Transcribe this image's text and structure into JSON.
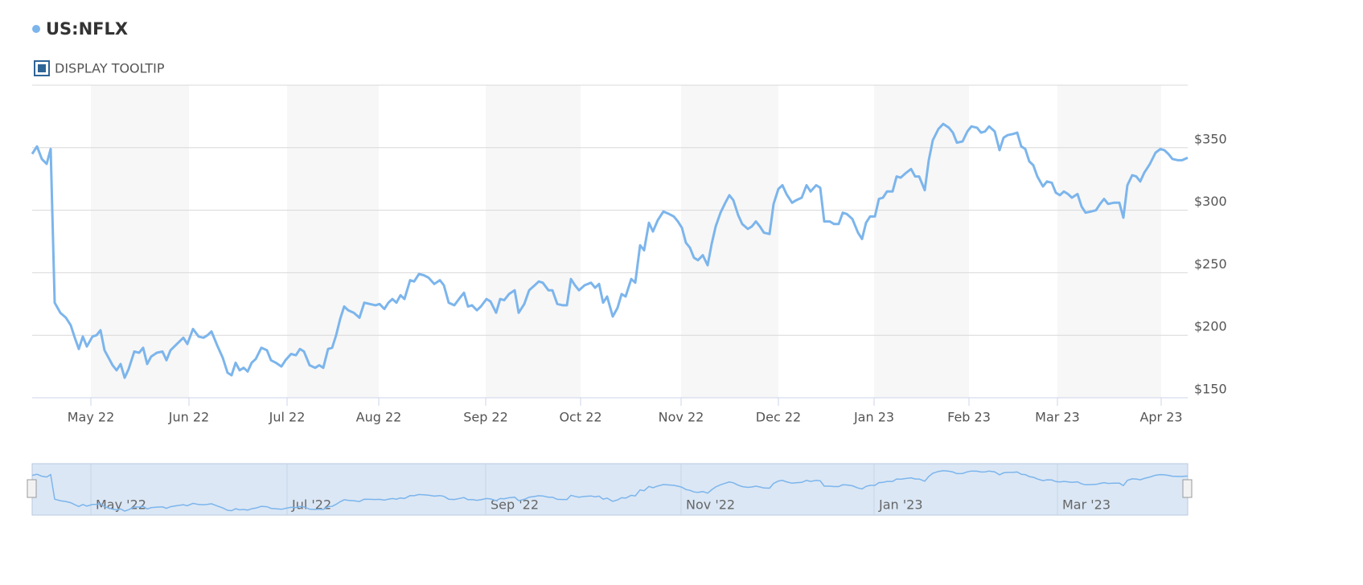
{
  "chart_data": {
    "type": "line",
    "series": [
      {
        "name": "US:NFLX",
        "color": "#7cb5ec",
        "values": [
          345,
          351,
          341,
          337,
          349,
          226,
          218,
          214,
          208,
          198,
          189,
          199,
          191,
          199,
          200,
          204,
          188,
          182,
          176,
          172,
          177,
          166,
          173,
          187,
          186,
          190,
          177,
          183,
          186,
          187,
          180,
          188,
          193,
          198,
          193,
          205,
          199,
          198,
          200,
          203,
          192,
          182,
          170,
          168,
          178,
          172,
          174,
          171,
          178,
          181,
          190,
          188,
          180,
          178,
          175,
          180,
          185,
          184,
          189,
          187,
          176,
          174,
          176,
          174,
          189,
          190,
          200,
          213,
          223,
          220,
          218,
          214,
          226,
          225,
          224,
          225,
          221,
          226,
          229,
          226,
          232,
          229,
          244,
          243,
          249,
          248,
          246,
          241,
          244,
          240,
          226,
          224,
          230,
          234,
          223,
          224,
          220,
          223,
          229,
          227,
          218,
          229,
          228,
          233,
          236,
          218,
          225,
          236,
          240,
          243,
          242,
          236,
          236,
          225,
          224,
          224,
          245,
          240,
          236,
          240,
          242,
          238,
          241,
          226,
          231,
          215,
          222,
          233,
          231,
          245,
          242,
          272,
          268,
          290,
          283,
          292,
          299,
          297,
          295,
          291,
          286,
          274,
          270,
          262,
          260,
          264,
          256,
          273,
          287,
          298,
          306,
          312,
          308,
          296,
          289,
          285,
          287,
          291,
          287,
          282,
          281,
          305,
          317,
          320,
          313,
          306,
          308,
          310,
          320,
          315,
          320,
          318,
          291,
          291,
          289,
          289,
          298,
          297,
          293,
          282,
          277,
          290,
          295,
          295,
          309,
          310,
          315,
          315,
          327,
          326,
          330,
          333,
          327,
          327,
          316,
          340,
          356,
          365,
          369,
          366,
          362,
          354,
          355,
          363,
          367,
          366,
          362,
          363,
          367,
          363,
          348,
          358,
          360,
          361,
          362,
          351,
          349,
          339,
          336,
          327,
          319,
          323,
          322,
          314,
          312,
          315,
          313,
          310,
          313,
          303,
          298,
          299,
          300,
          305,
          309,
          305,
          306,
          306,
          294,
          320,
          328,
          327,
          323,
          330,
          337,
          346,
          349,
          348,
          345,
          341,
          340,
          340,
          342
        ]
      }
    ],
    "x": [
      0,
      6,
      12,
      18,
      23,
      28,
      35,
      42,
      48,
      53,
      58,
      63,
      68,
      75,
      80,
      85,
      90,
      95,
      100,
      105,
      110,
      115,
      120,
      127,
      133,
      138,
      143,
      148,
      155,
      162,
      167,
      172,
      180,
      188,
      193,
      200,
      207,
      213,
      218,
      223,
      230,
      237,
      243,
      248,
      253,
      258,
      263,
      268,
      273,
      278,
      285,
      292,
      297,
      303,
      310,
      315,
      322,
      328,
      333,
      338,
      345,
      352,
      357,
      362,
      368,
      373,
      378,
      383,
      388,
      393,
      400,
      407,
      413,
      420,
      427,
      432,
      438,
      443,
      448,
      453,
      458,
      463,
      470,
      475,
      481,
      487,
      493,
      500,
      507,
      512,
      518,
      525,
      532,
      537,
      542,
      547,
      553,
      558,
      565,
      570,
      577,
      582,
      587,
      593,
      600,
      605,
      612,
      618,
      625,
      630,
      635,
      642,
      647,
      653,
      660,
      665,
      670,
      675,
      680,
      687,
      695,
      700,
      705,
      710,
      715,
      722,
      728,
      733,
      738,
      745,
      750,
      756,
      761,
      767,
      772,
      778,
      785,
      792,
      798,
      803,
      808,
      813,
      818,
      823,
      828,
      834,
      840,
      845,
      850,
      856,
      862,
      867,
      872,
      878,
      883,
      890,
      895,
      900,
      905,
      910,
      917,
      922,
      928,
      933,
      938,
      945,
      950,
      957,
      963,
      968,
      975,
      980,
      985,
      992,
      997,
      1003,
      1008,
      1013,
      1020,
      1027,
      1032,
      1037,
      1042,
      1048,
      1053,
      1058,
      1063,
      1070,
      1075,
      1080,
      1087,
      1093,
      1098,
      1103,
      1110,
      1115,
      1120,
      1127,
      1133,
      1140,
      1145,
      1150,
      1157,
      1163,
      1168,
      1175,
      1180,
      1185,
      1190,
      1197,
      1203,
      1208,
      1213,
      1220,
      1225,
      1230,
      1235,
      1240,
      1245,
      1250,
      1257,
      1262,
      1268,
      1273,
      1278,
      1283,
      1288,
      1293,
      1300,
      1305,
      1310,
      1317,
      1323,
      1328,
      1333,
      1338,
      1345,
      1352,
      1357,
      1362,
      1368,
      1373,
      1378,
      1383,
      1390,
      1397,
      1403,
      1408,
      1413,
      1418,
      1425,
      1430,
      1437
    ],
    "xlim": [
      0,
      1437
    ],
    "xticks": [
      {
        "value": 73,
        "label": "May 22"
      },
      {
        "value": 195,
        "label": "Jun 22"
      },
      {
        "value": 317,
        "label": "Jul 22"
      },
      {
        "value": 431,
        "label": "Aug 22"
      },
      {
        "value": 564,
        "label": "Sep 22"
      },
      {
        "value": 682,
        "label": "Oct 22"
      },
      {
        "value": 807,
        "label": "Nov 22"
      },
      {
        "value": 928,
        "label": "Dec 22"
      },
      {
        "value": 1047,
        "label": "Jan 23"
      },
      {
        "value": 1165,
        "label": "Feb 23"
      },
      {
        "value": 1275,
        "label": "Mar 23"
      },
      {
        "value": 1404,
        "label": "Apr 23"
      }
    ],
    "ylim": [
      150,
      400
    ],
    "yticks": [
      {
        "value": 150,
        "label": "$150"
      },
      {
        "value": 200,
        "label": "$200"
      },
      {
        "value": 250,
        "label": "$250"
      },
      {
        "value": 300,
        "label": "$300"
      },
      {
        "value": 350,
        "label": "$350"
      }
    ],
    "grid": true,
    "navigator": {
      "xticks": [
        {
          "value": 73,
          "label": "May '22"
        },
        {
          "value": 317,
          "label": "Jul '22"
        },
        {
          "value": 564,
          "label": "Sep '22"
        },
        {
          "value": 807,
          "label": "Nov '22"
        },
        {
          "value": 1047,
          "label": "Jan '23"
        },
        {
          "value": 1275,
          "label": "Mar '23"
        }
      ]
    }
  },
  "controls": {
    "tooltip_toggle": "DISPLAY TOOLTIP"
  }
}
